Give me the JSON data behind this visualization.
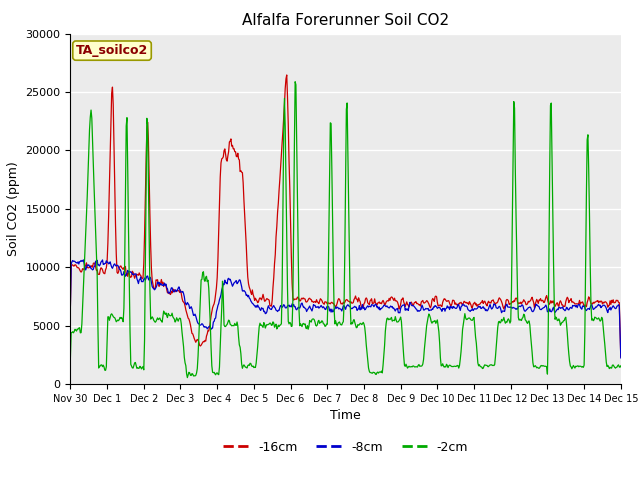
{
  "title": "Alfalfa Forerunner Soil CO2",
  "ylabel": "Soil CO2 (ppm)",
  "xlabel": "Time",
  "annotation": "TA_soilco2",
  "ylim": [
    0,
    30000
  ],
  "line_colors": {
    "d16": "#cc0000",
    "d8": "#0000cc",
    "d2": "#00aa00"
  },
  "legend_labels": {
    "d16": "-16cm",
    "d8": "-8cm",
    "d2": "-2cm"
  },
  "outer_bg": "#ffffff",
  "plot_bg": "#ebebeb",
  "grid_color": "#ffffff",
  "tick_labels": [
    "Nov 30",
    "Dec 1",
    "Dec 2",
    "Dec 3",
    "Dec 4",
    "Dec 5",
    "Dec 6",
    "Dec 7",
    "Dec 8",
    "Dec 9",
    "Dec 10",
    "Dec 11",
    "Dec 12",
    "Dec 13",
    "Dec 14",
    "Dec 15"
  ]
}
